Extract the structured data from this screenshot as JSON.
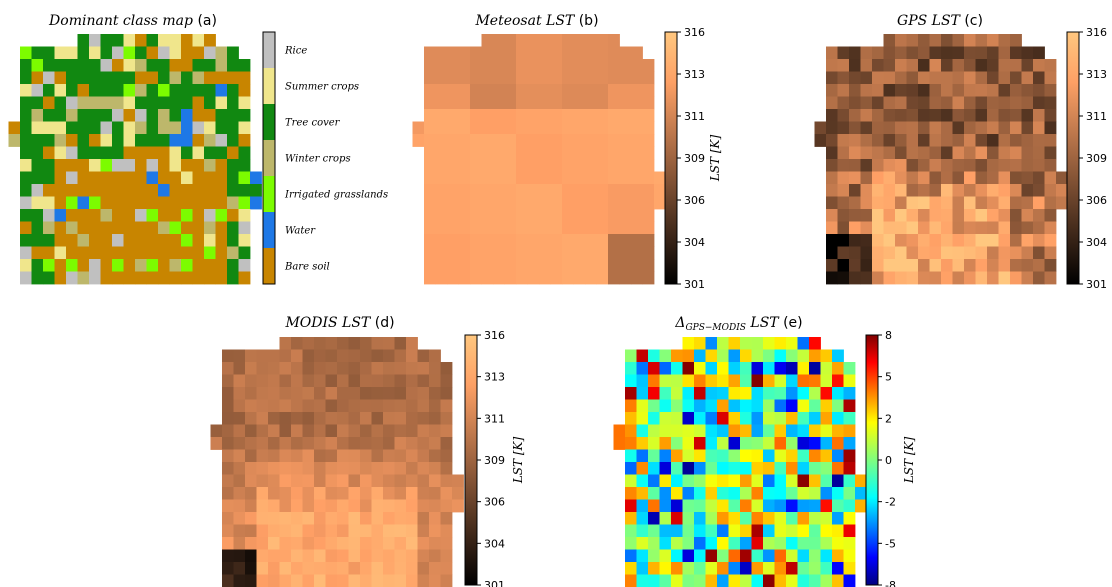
{
  "chart_data": [
    {
      "type": "heatmap",
      "panel": "a",
      "title": "Dominant class map",
      "tag": "(a)",
      "legend_placement": "right",
      "classes": [
        {
          "name": "Rice",
          "color": "#c0c0c0"
        },
        {
          "name": "Summer crops",
          "color": "#f0e68c"
        },
        {
          "name": "Tree cover",
          "color": "#118811"
        },
        {
          "name": "Winter crops",
          "color": "#bdb76b"
        },
        {
          "name": "Irrigated grasslands",
          "color": "#7cfc00"
        },
        {
          "name": "Water",
          "color": "#1e78e6"
        },
        {
          "name": "Bare soil",
          "color": "#c88500"
        }
      ]
    },
    {
      "type": "heatmap",
      "panel": "b",
      "title": "Meteosat  LST",
      "tag": "(b)",
      "colormap": "copper",
      "colorbar_label": "LST [K]",
      "zlim": [
        301,
        316
      ],
      "ticks": [
        "316",
        "313",
        "311",
        "309",
        "306",
        "304",
        "301"
      ]
    },
    {
      "type": "heatmap",
      "panel": "c",
      "title": "GPS  LST",
      "tag": "(c)",
      "colormap": "copper",
      "zlim": [
        301,
        316
      ],
      "ticks": [
        "316",
        "313",
        "311",
        "309",
        "306",
        "304",
        "301"
      ]
    },
    {
      "type": "heatmap",
      "panel": "d",
      "title": "MODIS LST",
      "tag": "(d)",
      "colormap": "copper",
      "colorbar_label": "LST [K]",
      "zlim": [
        301,
        316
      ],
      "ticks": [
        "316",
        "313",
        "311",
        "309",
        "306",
        "304",
        "301"
      ]
    },
    {
      "type": "heatmap",
      "panel": "e",
      "title": "Δ",
      "title_sub": "GPS−MODIS",
      "title_rest": " LST",
      "tag": "(e)",
      "colormap": "jet",
      "colorbar_label": "LST [K]",
      "zlim": [
        -8,
        8
      ],
      "ticks": [
        "8",
        "5",
        "2",
        "0",
        "-2",
        "-5",
        "-8"
      ]
    }
  ]
}
